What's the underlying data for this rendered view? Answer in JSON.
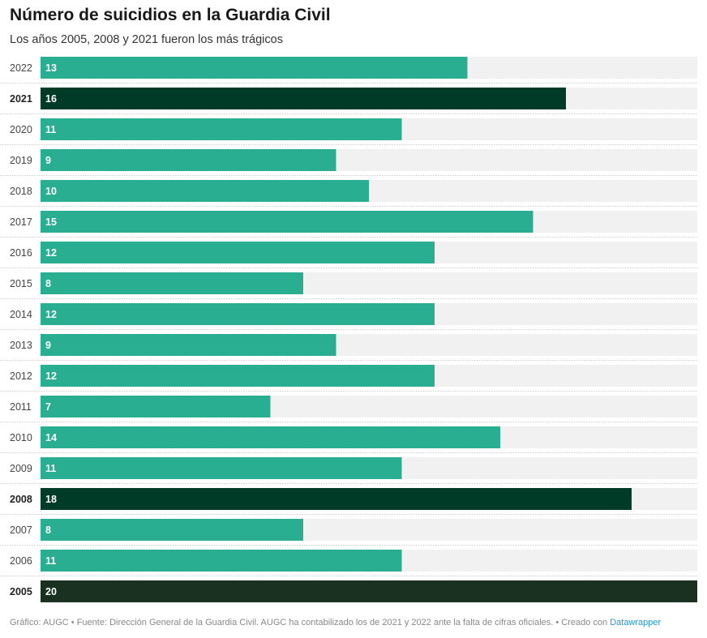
{
  "header": {
    "title": "Número de suicidios en la Guardia Civil",
    "subtitle": "Los años 2005, 2008 y 2021 fueron los más trágicos"
  },
  "footer": {
    "text": "Gráfico: AUGC • Fuente: Dirección General de la Guardia Civil. AUGC ha contabilizado los de 2021 y 2022 ante la falta de cifras oficiales. • Creado con ",
    "link_label": "Datawrapper"
  },
  "colors": {
    "bar": "#2aae92",
    "highlight": "#003b28",
    "max": "#1a3020",
    "track": "#f1f1f1",
    "separator": "#cfcfcf"
  },
  "chart_data": {
    "type": "bar",
    "orientation": "horizontal",
    "title": "Número de suicidios en la Guardia Civil",
    "subtitle": "Los años 2005, 2008 y 2021 fueron los más trágicos",
    "categories": [
      "2022",
      "2021",
      "2020",
      "2019",
      "2018",
      "2017",
      "2016",
      "2015",
      "2014",
      "2013",
      "2012",
      "2011",
      "2010",
      "2009",
      "2008",
      "2007",
      "2006",
      "2005"
    ],
    "values": [
      13,
      16,
      11,
      9,
      10,
      15,
      12,
      8,
      12,
      9,
      12,
      7,
      14,
      11,
      18,
      8,
      11,
      20
    ],
    "highlighted": [
      "2021",
      "2008",
      "2005"
    ],
    "xlim": [
      0,
      20
    ],
    "grid": false,
    "legend": "none"
  }
}
